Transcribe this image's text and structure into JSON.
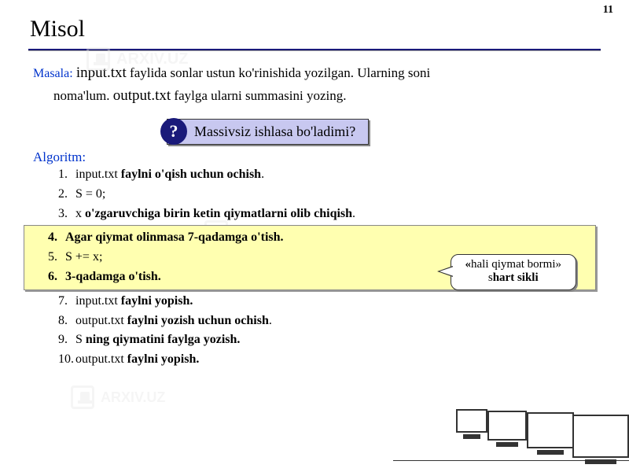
{
  "page_number": "11",
  "title": "Misol",
  "watermark_text": "ARXIV.UZ",
  "problem": {
    "label": "Masala:",
    "line1_a": "input.txt",
    "line1_b": "faylida sonlar ustun ko'rinishida yozilgan. Ularning soni",
    "line2_a": "noma'lum.",
    "line2_b": "output.txt",
    "line2_c": "faylga ularni summasini yozing."
  },
  "callout": {
    "badge": "?",
    "text": "Massivsiz ishlasa bo'ladimi?"
  },
  "algorithm_label": "Algoritm:",
  "steps": [
    {
      "n": "1.",
      "a": "input.txt ",
      "b": "faylni o'qish uchun ochish",
      "c": "."
    },
    {
      "n": "2.",
      "a": "S = 0;",
      "b": "",
      "c": ""
    },
    {
      "n": "3.",
      "a": "x ",
      "b": "o'zgaruvchiga birin ketin qiymatlarni olib chiqish",
      "c": "."
    },
    {
      "n": "4.",
      "a": "",
      "b": "Agar qiymat olinmasa 7-qadamga o'tish.",
      "c": ""
    },
    {
      "n": "5.",
      "a": "S += x;",
      "b": "",
      "c": ""
    },
    {
      "n": "6.",
      "a": "",
      "b": "3-qadamga o'tish.",
      "c": ""
    },
    {
      "n": "7.",
      "a": "input.txt ",
      "b": "faylni yopish.",
      "c": ""
    },
    {
      "n": "8.",
      "a": "output.txt ",
      "b": "faylni yozish uchun ochish",
      "c": "."
    },
    {
      "n": "9.",
      "a": "S ",
      "b": "ning qiymatini faylga yozish.",
      "c": ""
    },
    {
      "n": "10.",
      "a": "output.txt ",
      "b": "faylni yopish.",
      "c": ""
    }
  ],
  "bubble": {
    "line1_a": "«",
    "line1_b": "hali qiymat bormi»",
    "line2_a": "s",
    "line2_b": "hart sikli"
  },
  "colors": {
    "title_underline": "#1a1a7a",
    "label_color": "#0033cc",
    "highlight_bg": "#ffffb0",
    "callout_bg": "#c8c8f0",
    "badge_bg": "#1a1a7a"
  }
}
